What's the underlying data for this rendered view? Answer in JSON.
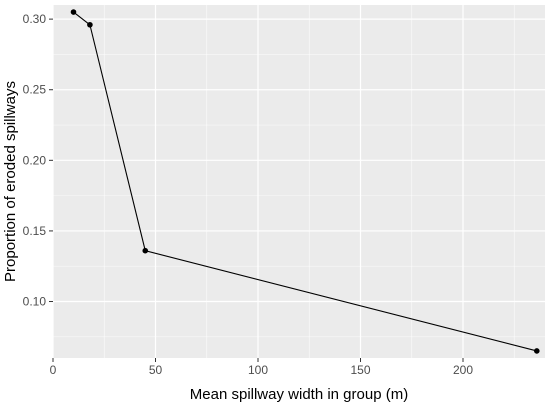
{
  "chart_data": {
    "type": "line",
    "title": "",
    "xlabel": "Mean spillway width in group (m)",
    "ylabel": "Proportion of eroded spillways",
    "xlim": [
      0,
      240
    ],
    "ylim": [
      0.06,
      0.31
    ],
    "x_ticks": [
      0,
      50,
      100,
      150,
      200
    ],
    "x_tick_labels": [
      "0",
      "50",
      "100",
      "150",
      "200"
    ],
    "y_ticks": [
      0.1,
      0.15,
      0.2,
      0.25,
      0.3
    ],
    "y_tick_labels": [
      "0.10",
      "0.15",
      "0.20",
      "0.25",
      "0.30"
    ],
    "grid": true,
    "legend": "none",
    "series": [
      {
        "x": [
          10,
          18,
          45,
          236
        ],
        "y": [
          0.305,
          0.296,
          0.136,
          0.065
        ]
      }
    ],
    "colors": {
      "panel_background": "#ebebeb",
      "grid_major": "#ffffff",
      "line": "#000000",
      "point": "#000000",
      "tick_text": "#4d4d4d",
      "axis_title": "#000000"
    }
  }
}
